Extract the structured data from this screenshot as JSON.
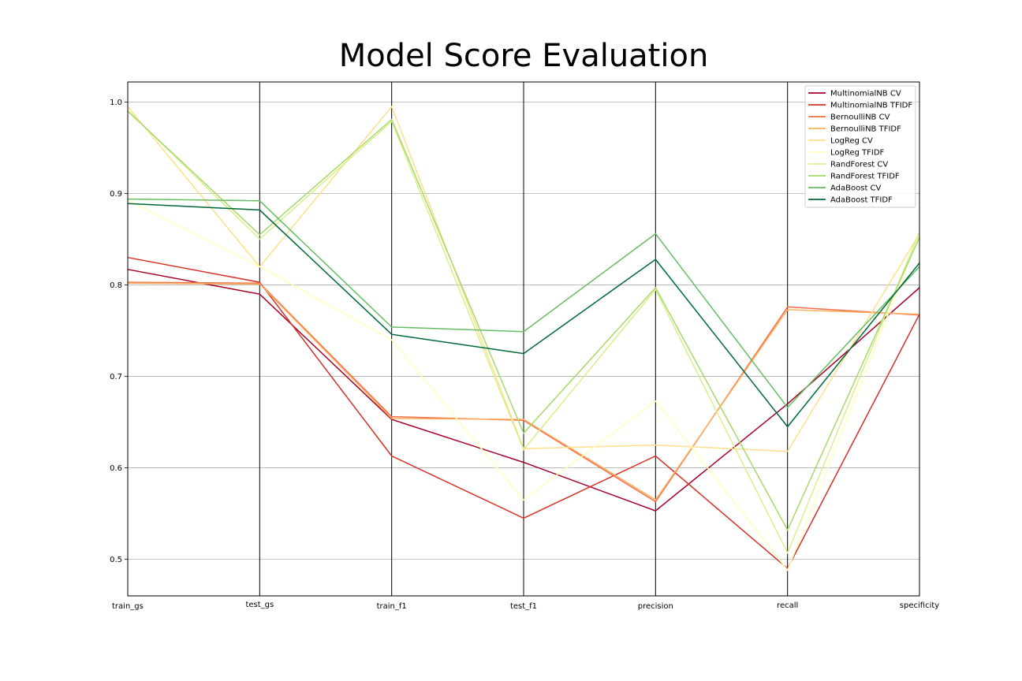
{
  "chart_data": {
    "type": "line",
    "subtype": "parallel-coordinates",
    "title": "Model Score Evaluation",
    "xlabel": "",
    "ylabel": "",
    "categories": [
      "train_gs",
      "test_gs",
      "train_f1",
      "test_f1",
      "precision",
      "recall",
      "specificity"
    ],
    "ylim": [
      0.46,
      1.022
    ],
    "yticks": [
      "0.5",
      "0.6",
      "0.7",
      "0.8",
      "0.9",
      "1.0"
    ],
    "grid": "horizontal",
    "legend_position": "top-right",
    "series": [
      {
        "name": "MultinomialNB CV",
        "color": "#a50026",
        "values": [
          0.817,
          0.79,
          0.653,
          0.606,
          0.553,
          0.67,
          0.797
        ]
      },
      {
        "name": "MultinomialNB TFIDF",
        "color": "#d73027",
        "values": [
          0.83,
          0.803,
          0.613,
          0.545,
          0.613,
          0.49,
          0.768
        ]
      },
      {
        "name": "BernoulliNB CV",
        "color": "#f46d43",
        "values": [
          0.803,
          0.802,
          0.656,
          0.652,
          0.563,
          0.776,
          0.767
        ]
      },
      {
        "name": "BernoulliNB TFIDF",
        "color": "#fdae61",
        "values": [
          0.802,
          0.801,
          0.654,
          0.653,
          0.565,
          0.773,
          0.768
        ]
      },
      {
        "name": "LogReg CV",
        "color": "#fee08b",
        "values": [
          0.995,
          0.82,
          0.995,
          0.621,
          0.625,
          0.618,
          0.856
        ]
      },
      {
        "name": "LogReg TFIDF",
        "color": "#ffffbf",
        "values": [
          0.893,
          0.82,
          0.74,
          0.565,
          0.673,
          0.488,
          0.855
        ]
      },
      {
        "name": "RandForest CV",
        "color": "#d9ef8b",
        "values": [
          0.991,
          0.85,
          0.979,
          0.62,
          0.795,
          0.507,
          0.858
        ]
      },
      {
        "name": "RandForest TFIDF",
        "color": "#a6d96a",
        "values": [
          0.99,
          0.855,
          0.981,
          0.638,
          0.797,
          0.532,
          0.852
        ]
      },
      {
        "name": "AdaBoost CV",
        "color": "#66bd63",
        "values": [
          0.894,
          0.892,
          0.754,
          0.749,
          0.856,
          0.666,
          0.82
        ]
      },
      {
        "name": "AdaBoost TFIDF",
        "color": "#006837",
        "values": [
          0.889,
          0.882,
          0.746,
          0.725,
          0.828,
          0.645,
          0.824
        ]
      }
    ]
  }
}
